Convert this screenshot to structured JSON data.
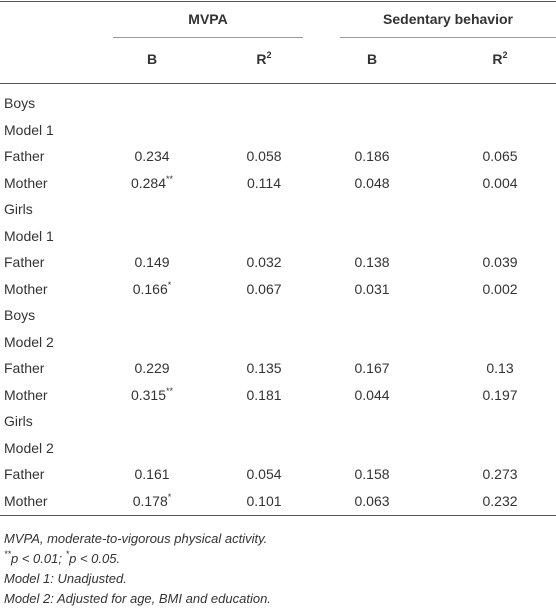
{
  "header": {
    "groups": [
      "MVPA",
      "Sedentary behavior"
    ],
    "columns": [
      {
        "text": "B"
      },
      {
        "text": "R",
        "sup": "2"
      },
      {
        "text": "B"
      },
      {
        "text": "R",
        "sup": "2"
      }
    ]
  },
  "table": {
    "rows": [
      {
        "label": "Boys"
      },
      {
        "label": "Model 1"
      },
      {
        "label": "Father",
        "cells": [
          {
            "text": "0.234"
          },
          {
            "text": "0.058"
          },
          {
            "text": "0.186"
          },
          {
            "text": "0.065"
          }
        ]
      },
      {
        "label": "Mother",
        "cells": [
          {
            "text": "0.284",
            "sup": "**"
          },
          {
            "text": "0.114"
          },
          {
            "text": "0.048"
          },
          {
            "text": "0.004"
          }
        ]
      },
      {
        "label": "Girls"
      },
      {
        "label": "Model 1"
      },
      {
        "label": "Father",
        "cells": [
          {
            "text": "0.149"
          },
          {
            "text": "0.032"
          },
          {
            "text": "0.138"
          },
          {
            "text": "0.039"
          }
        ]
      },
      {
        "label": "Mother",
        "cells": [
          {
            "text": "0.166",
            "sup": "*"
          },
          {
            "text": "0.067"
          },
          {
            "text": "0.031"
          },
          {
            "text": "0.002"
          }
        ]
      },
      {
        "label": "Boys"
      },
      {
        "label": "Model 2"
      },
      {
        "label": "Father",
        "cells": [
          {
            "text": "0.229"
          },
          {
            "text": "0.135"
          },
          {
            "text": "0.167"
          },
          {
            "text": "0.13"
          }
        ]
      },
      {
        "label": "Mother",
        "cells": [
          {
            "text": "0.315",
            "sup": "**"
          },
          {
            "text": "0.181"
          },
          {
            "text": "0.044"
          },
          {
            "text": "0.197"
          }
        ]
      },
      {
        "label": "Girls"
      },
      {
        "label": "Model 2"
      },
      {
        "label": "Father",
        "cells": [
          {
            "text": "0.161"
          },
          {
            "text": "0.054"
          },
          {
            "text": "0.158"
          },
          {
            "text": "0.273"
          }
        ]
      },
      {
        "label": "Mother",
        "cells": [
          {
            "text": "0.178",
            "sup": "*"
          },
          {
            "text": "0.101"
          },
          {
            "text": "0.063"
          },
          {
            "text": "0.232"
          }
        ]
      }
    ]
  },
  "footnotes": [
    [
      {
        "text": "MVPA, moderate-to-vigorous physical activity."
      }
    ],
    [
      {
        "text": "**",
        "sup": true
      },
      {
        "text": "p < 0.01; "
      },
      {
        "text": "*",
        "sup": true
      },
      {
        "text": "p < 0.05."
      }
    ],
    [
      {
        "text": "Model 1: Unadjusted."
      }
    ],
    [
      {
        "text": "Model 2: Adjusted for age, BMI and education."
      }
    ]
  ]
}
